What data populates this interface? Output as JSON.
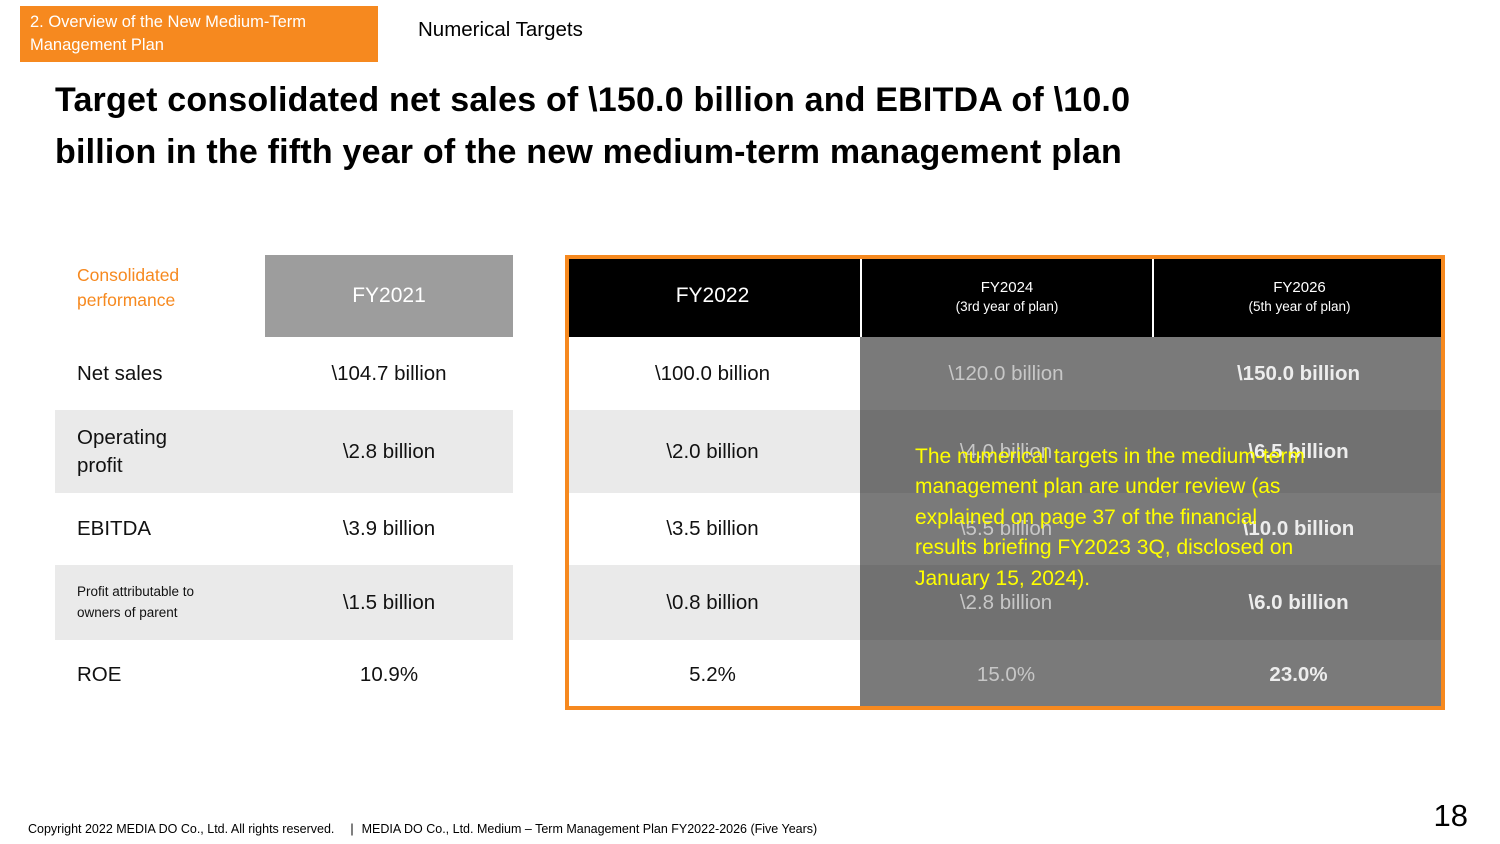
{
  "page": {
    "badge": "2. Overview of the New Medium-Term\nManagement Plan",
    "section_title": "Numerical Targets",
    "title": "Target consolidated net sales of \\150.0 billion and EBITDA of \\10.0\nbillion in the fifth year of the new medium-term management plan",
    "footer_copyright": "Copyright 2022 MEDIA DO Co., Ltd. All rights reserved.",
    "footer_divider": "|",
    "footer_plan": "MEDIA DO Co., Ltd. Medium – Term Management Plan FY2022-2026 (Five Years)",
    "page_number": "18"
  },
  "table": {
    "corner_label": "Consolidated\nperformance",
    "columns": [
      {
        "label": "FY2021",
        "sublabel": ""
      },
      {
        "label": "FY2022",
        "sublabel": ""
      },
      {
        "label": "FY2024",
        "sublabel": "(3rd year of plan)"
      },
      {
        "label": "FY2026",
        "sublabel": "(5th year of plan)"
      }
    ],
    "rows": [
      {
        "label": "Net sales",
        "values": [
          "\\104.7 billion",
          "\\100.0 billion",
          "\\120.0 billion",
          "\\150.0 billion"
        ]
      },
      {
        "label": "Operating\nprofit",
        "values": [
          "\\2.8 billion",
          "\\2.0 billion",
          "\\4.0 billion",
          "\\6.5 billion"
        ]
      },
      {
        "label": "EBITDA",
        "values": [
          "\\3.9 billion",
          "\\3.5 billion",
          "\\5.5 billion",
          "\\10.0 billion"
        ]
      },
      {
        "label": "Profit attributable to\nowners of parent",
        "values": [
          "\\1.5 billion",
          "\\0.8 billion",
          "\\2.8 billion",
          "\\6.0 billion"
        ]
      },
      {
        "label": "ROE",
        "values": [
          "10.9%",
          "5.2%",
          "15.0%",
          "23.0%"
        ]
      }
    ]
  },
  "overlay": {
    "notice": "The numerical targets in the medium-term\nmanagement plan are under review (as\nexplained on page 37 of the financial\nresults briefing FY2023 3Q, disclosed on\nJanuary 15, 2024)."
  },
  "colors": {
    "accent_orange": "#F6891F",
    "header_gray": "#9D9D9D",
    "header_black": "#000000",
    "stripe_gray": "#EAEAEA",
    "overlay_dark": "#7A7A7A",
    "overlay_dark_stripe": "#717171",
    "notice_yellow": "#FFFF00"
  }
}
